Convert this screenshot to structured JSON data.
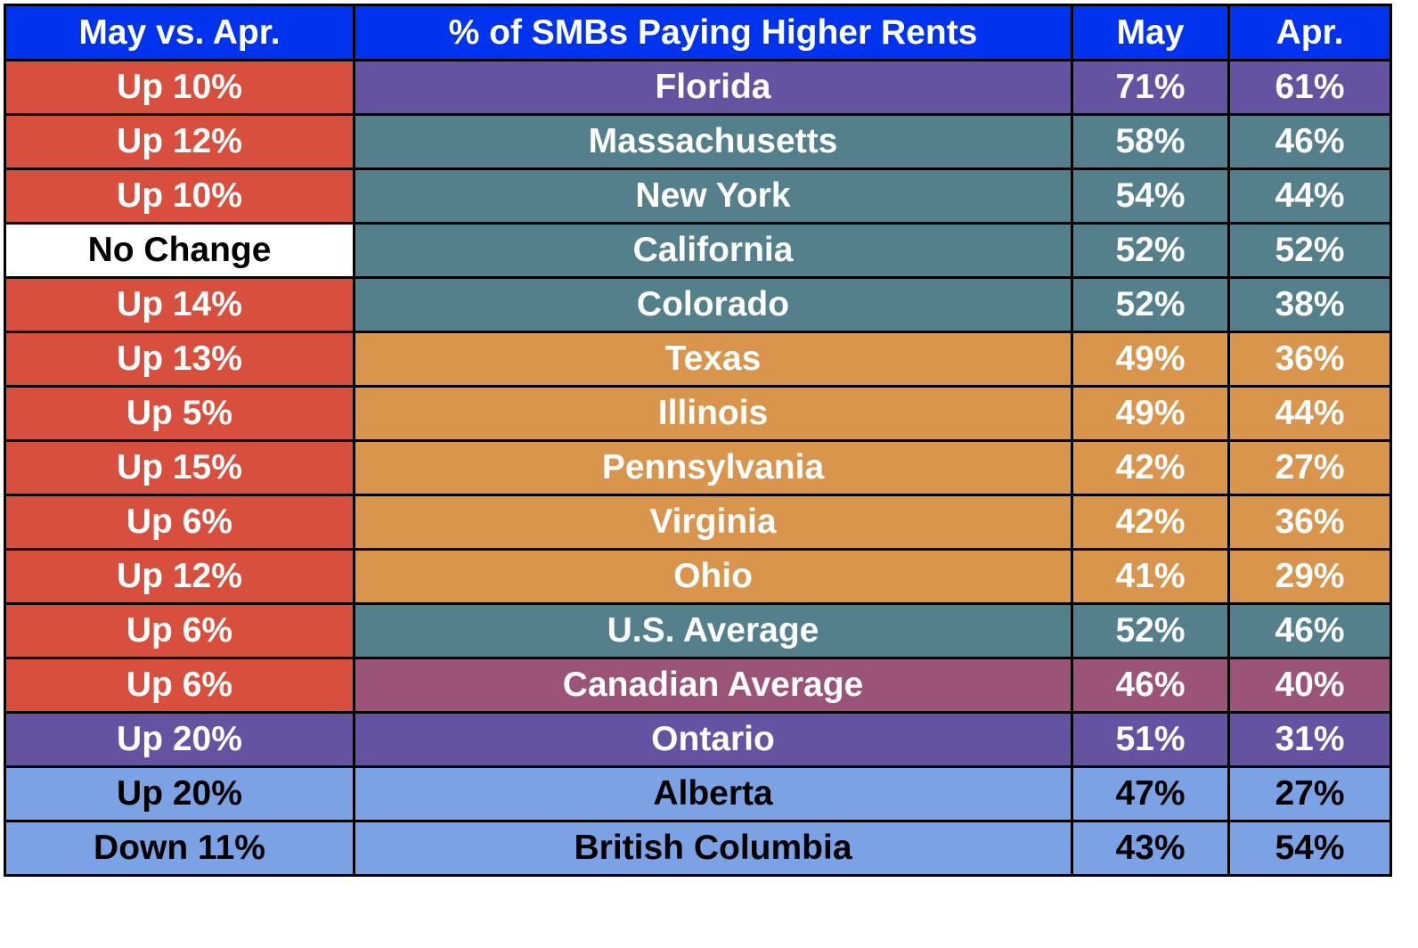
{
  "chart_data": {
    "type": "table",
    "columns": [
      "May vs. Apr.",
      "% of SMBs Paying Higher Rents",
      "May",
      "Apr."
    ],
    "header_color": "#0033ee",
    "rows": [
      {
        "change": "Up 10%",
        "region": "Florida",
        "may": "71%",
        "apr": "61%",
        "change_color": "#d94f3d",
        "row_color": "#6553a2",
        "text_color": "#ffffff",
        "change_text_color": "#ffffff"
      },
      {
        "change": "Up 12%",
        "region": "Massachusetts",
        "may": "58%",
        "apr": "46%",
        "change_color": "#d94f3d",
        "row_color": "#54808c",
        "text_color": "#ffffff",
        "change_text_color": "#ffffff"
      },
      {
        "change": "Up 10%",
        "region": "New York",
        "may": "54%",
        "apr": "44%",
        "change_color": "#d94f3d",
        "row_color": "#54808c",
        "text_color": "#ffffff",
        "change_text_color": "#ffffff"
      },
      {
        "change": "No Change",
        "region": "California",
        "may": "52%",
        "apr": "52%",
        "change_color": "#ffffff",
        "row_color": "#54808c",
        "text_color": "#ffffff",
        "change_text_color": "#000000"
      },
      {
        "change": "Up 14%",
        "region": "Colorado",
        "may": "52%",
        "apr": "38%",
        "change_color": "#d94f3d",
        "row_color": "#54808c",
        "text_color": "#ffffff",
        "change_text_color": "#ffffff"
      },
      {
        "change": "Up 13%",
        "region": "Texas",
        "may": "49%",
        "apr": "36%",
        "change_color": "#d94f3d",
        "row_color": "#da954d",
        "text_color": "#ffffff",
        "change_text_color": "#ffffff"
      },
      {
        "change": "Up 5%",
        "region": "Illinois",
        "may": "49%",
        "apr": "44%",
        "change_color": "#d94f3d",
        "row_color": "#da954d",
        "text_color": "#ffffff",
        "change_text_color": "#ffffff"
      },
      {
        "change": "Up 15%",
        "region": "Pennsylvania",
        "may": "42%",
        "apr": "27%",
        "change_color": "#d94f3d",
        "row_color": "#da954d",
        "text_color": "#ffffff",
        "change_text_color": "#ffffff"
      },
      {
        "change": "Up 6%",
        "region": "Virginia",
        "may": "42%",
        "apr": "36%",
        "change_color": "#d94f3d",
        "row_color": "#da954d",
        "text_color": "#ffffff",
        "change_text_color": "#ffffff"
      },
      {
        "change": "Up 12%",
        "region": "Ohio",
        "may": "41%",
        "apr": "29%",
        "change_color": "#d94f3d",
        "row_color": "#da954d",
        "text_color": "#ffffff",
        "change_text_color": "#ffffff"
      },
      {
        "change": "Up 6%",
        "region": "U.S. Average",
        "may": "52%",
        "apr": "46%",
        "change_color": "#d94f3d",
        "row_color": "#54808c",
        "text_color": "#ffffff",
        "change_text_color": "#ffffff"
      },
      {
        "change": "Up 6%",
        "region": "Canadian Average",
        "may": "46%",
        "apr": "40%",
        "change_color": "#d94f3d",
        "row_color": "#9b5377",
        "text_color": "#ffffff",
        "change_text_color": "#ffffff"
      },
      {
        "change": "Up 20%",
        "region": "Ontario",
        "may": "51%",
        "apr": "31%",
        "change_color": "#6553a2",
        "row_color": "#6553a2",
        "text_color": "#ffffff",
        "change_text_color": "#ffffff"
      },
      {
        "change": "Up 20%",
        "region": "Alberta",
        "may": "47%",
        "apr": "27%",
        "change_color": "#7ba2e4",
        "row_color": "#7ba2e4",
        "text_color": "#000000",
        "change_text_color": "#000000"
      },
      {
        "change": "Down 11%",
        "region": "British Columbia",
        "may": "43%",
        "apr": "54%",
        "change_color": "#7ba2e4",
        "row_color": "#7ba2e4",
        "text_color": "#000000",
        "change_text_color": "#000000"
      }
    ]
  }
}
